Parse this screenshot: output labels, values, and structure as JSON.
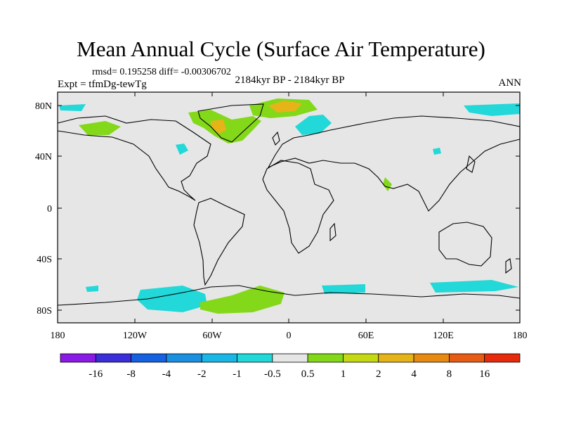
{
  "title": "Mean Annual Cycle (Surface Air Temperature)",
  "stats": "rmsd= 0.195258 diff= -0.00306702",
  "period": "2184kyr BP - 2184kyr BP",
  "experiment": "Expt = tfmDg-tewTg",
  "season": "ANN",
  "lat_labels": [
    "80N",
    "40N",
    "0",
    "40S",
    "80S"
  ],
  "lon_labels": [
    "180",
    "120W",
    "60W",
    "0",
    "60E",
    "120E",
    "180"
  ],
  "colorbar": {
    "labels": [
      "-16",
      "-8",
      "-4",
      "-2",
      "-1",
      "-0.5",
      "0.5",
      "1",
      "2",
      "4",
      "8",
      "16"
    ],
    "colors": [
      "#8a1be6",
      "#3a2fd8",
      "#1561e0",
      "#1b8fe0",
      "#1ab6e6",
      "#22d8d8",
      "#e6e6e6",
      "#84d81a",
      "#c4d814",
      "#e6b418",
      "#e68a14",
      "#e65c14",
      "#e62a0c"
    ]
  },
  "colors": {
    "ocean_land_fill": "#e6e6e6",
    "coast": "#000000",
    "warm_1": "#84d81a",
    "warm_2": "#c4d814",
    "warm_4": "#e6b418",
    "cool_1": "#22d8d8",
    "cool_2": "#1ab6e6"
  }
}
